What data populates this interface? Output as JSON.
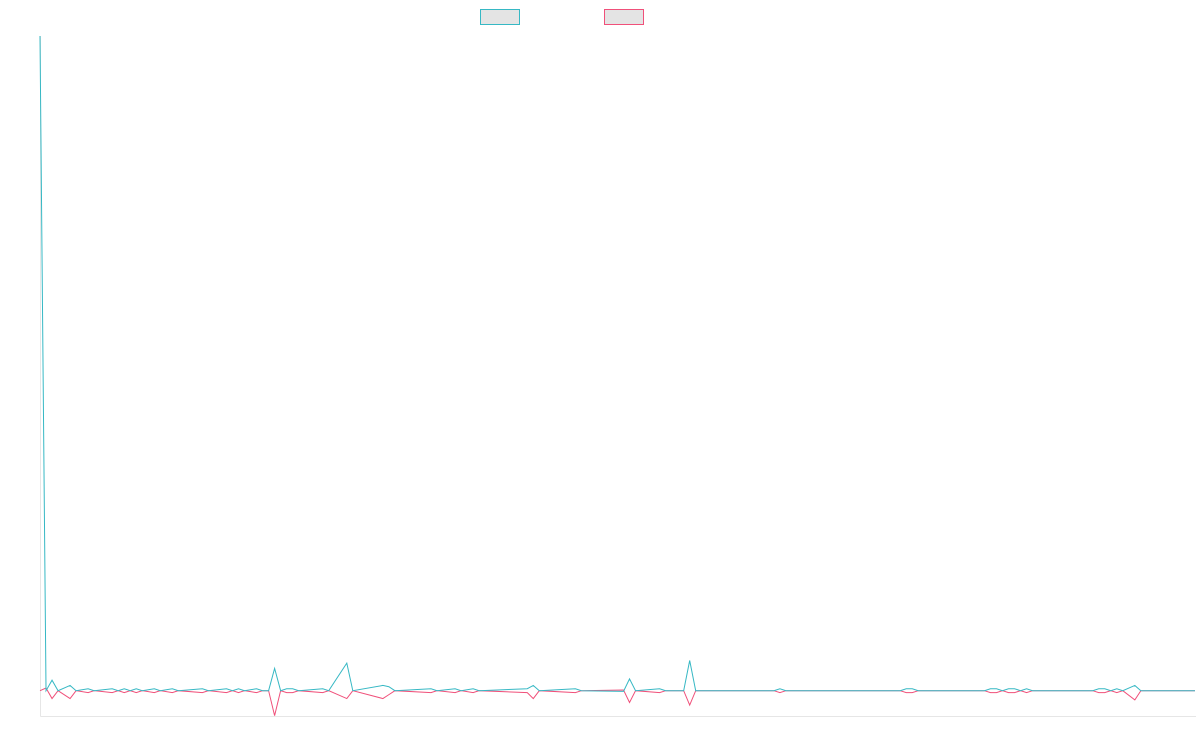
{
  "chart_data": {
    "type": "line",
    "x_count": 193,
    "series": [
      {
        "color": "#36b8c4",
        "points": [
          [
            0,
            1.0
          ],
          [
            1,
            0.002
          ],
          [
            2,
            0.018
          ],
          [
            3,
            0.002
          ],
          [
            5,
            0.01
          ],
          [
            6,
            0.002
          ],
          [
            8,
            0.005
          ],
          [
            9,
            0.002
          ],
          [
            12,
            0.005
          ],
          [
            13,
            0.002
          ],
          [
            14,
            0.005
          ],
          [
            15,
            0.002
          ],
          [
            16,
            0.005
          ],
          [
            17,
            0.002
          ],
          [
            19,
            0.005
          ],
          [
            20,
            0.002
          ],
          [
            22,
            0.005
          ],
          [
            23,
            0.002
          ],
          [
            27,
            0.005
          ],
          [
            28,
            0.002
          ],
          [
            31,
            0.005
          ],
          [
            32,
            0.002
          ],
          [
            33,
            0.005
          ],
          [
            34,
            0.002
          ],
          [
            36,
            0.005
          ],
          [
            37,
            0.002
          ],
          [
            38,
            0.002
          ],
          [
            39,
            0.036
          ],
          [
            40,
            0.002
          ],
          [
            41,
            0.005
          ],
          [
            42,
            0.005
          ],
          [
            43,
            0.002
          ],
          [
            47,
            0.005
          ],
          [
            48,
            0.002
          ],
          [
            51,
            0.044
          ],
          [
            52,
            0.002
          ],
          [
            57,
            0.01
          ],
          [
            58,
            0.008
          ],
          [
            59,
            0.002
          ],
          [
            65,
            0.005
          ],
          [
            66,
            0.002
          ],
          [
            69,
            0.005
          ],
          [
            70,
            0.002
          ],
          [
            72,
            0.005
          ],
          [
            73,
            0.002
          ],
          [
            81,
            0.005
          ],
          [
            82,
            0.01
          ],
          [
            83,
            0.002
          ],
          [
            89,
            0.005
          ],
          [
            90,
            0.002
          ],
          [
            97,
            0.001
          ],
          [
            98,
            0.02
          ],
          [
            99,
            0.002
          ],
          [
            103,
            0.005
          ],
          [
            104,
            0.002
          ],
          [
            107,
            0.002
          ],
          [
            108,
            0.048
          ],
          [
            109,
            0.002
          ],
          [
            122,
            0.002
          ],
          [
            123,
            0.005
          ],
          [
            124,
            0.002
          ],
          [
            143,
            0.002
          ],
          [
            144,
            0.005
          ],
          [
            145,
            0.005
          ],
          [
            146,
            0.002
          ],
          [
            157,
            0.002
          ],
          [
            158,
            0.005
          ],
          [
            159,
            0.005
          ],
          [
            160,
            0.002
          ],
          [
            161,
            0.005
          ],
          [
            162,
            0.005
          ],
          [
            163,
            0.002
          ],
          [
            164,
            0.005
          ],
          [
            165,
            0.002
          ],
          [
            175,
            0.002
          ],
          [
            176,
            0.005
          ],
          [
            177,
            0.005
          ],
          [
            178,
            0.002
          ],
          [
            179,
            0.005
          ],
          [
            180,
            0.002
          ],
          [
            182,
            0.01
          ],
          [
            183,
            0.002
          ],
          [
            192,
            0.002
          ]
        ]
      },
      {
        "color": "#f0507a",
        "points": [
          [
            0,
            0.002
          ],
          [
            1,
            0.006
          ],
          [
            2,
            -0.01
          ],
          [
            3,
            0.002
          ],
          [
            5,
            -0.01
          ],
          [
            6,
            0.002
          ],
          [
            8,
            -0.001
          ],
          [
            9,
            0.002
          ],
          [
            12,
            -0.001
          ],
          [
            13,
            0.002
          ],
          [
            14,
            -0.001
          ],
          [
            15,
            0.002
          ],
          [
            16,
            -0.001
          ],
          [
            17,
            0.002
          ],
          [
            19,
            -0.001
          ],
          [
            20,
            0.002
          ],
          [
            22,
            -0.001
          ],
          [
            23,
            0.002
          ],
          [
            27,
            -0.001
          ],
          [
            28,
            0.002
          ],
          [
            31,
            -0.001
          ],
          [
            32,
            0.002
          ],
          [
            33,
            -0.001
          ],
          [
            34,
            0.002
          ],
          [
            36,
            -0.001
          ],
          [
            37,
            0.002
          ],
          [
            38,
            0.002
          ],
          [
            39,
            -0.036
          ],
          [
            40,
            0.002
          ],
          [
            41,
            -0.001
          ],
          [
            42,
            -0.001
          ],
          [
            43,
            0.002
          ],
          [
            47,
            -0.001
          ],
          [
            48,
            0.002
          ],
          [
            51,
            -0.01
          ],
          [
            52,
            0.002
          ],
          [
            57,
            -0.01
          ],
          [
            58,
            -0.004
          ],
          [
            59,
            0.002
          ],
          [
            65,
            -0.001
          ],
          [
            66,
            0.002
          ],
          [
            69,
            -0.001
          ],
          [
            70,
            0.002
          ],
          [
            72,
            -0.001
          ],
          [
            73,
            0.002
          ],
          [
            81,
            -0.001
          ],
          [
            82,
            -0.01
          ],
          [
            83,
            0.002
          ],
          [
            89,
            -0.001
          ],
          [
            90,
            0.002
          ],
          [
            97,
            0.003
          ],
          [
            98,
            -0.016
          ],
          [
            99,
            0.002
          ],
          [
            103,
            -0.001
          ],
          [
            104,
            0.002
          ],
          [
            107,
            0.002
          ],
          [
            108,
            -0.02
          ],
          [
            109,
            0.002
          ],
          [
            122,
            0.002
          ],
          [
            123,
            -0.001
          ],
          [
            124,
            0.002
          ],
          [
            143,
            0.002
          ],
          [
            144,
            -0.001
          ],
          [
            145,
            -0.001
          ],
          [
            146,
            0.002
          ],
          [
            157,
            0.002
          ],
          [
            158,
            -0.001
          ],
          [
            159,
            -0.001
          ],
          [
            160,
            0.002
          ],
          [
            161,
            -0.001
          ],
          [
            162,
            -0.001
          ],
          [
            163,
            0.002
          ],
          [
            164,
            -0.001
          ],
          [
            165,
            0.002
          ],
          [
            175,
            0.002
          ],
          [
            176,
            -0.001
          ],
          [
            177,
            -0.001
          ],
          [
            178,
            0.002
          ],
          [
            179,
            -0.001
          ],
          [
            180,
            0.002
          ],
          [
            182,
            -0.012
          ],
          [
            183,
            0.002
          ],
          [
            192,
            0.002
          ]
        ]
      }
    ],
    "ylim": [
      -0.037,
      1.0
    ],
    "grid": false,
    "legend": "top-center",
    "title": "",
    "xlabel": "",
    "ylabel": ""
  }
}
